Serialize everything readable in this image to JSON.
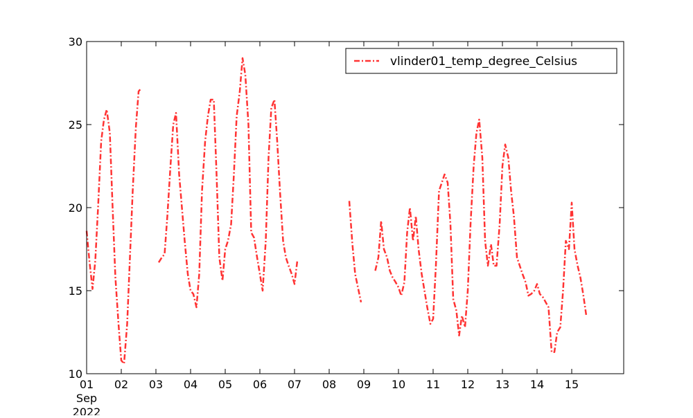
{
  "chart_data": {
    "type": "line",
    "x_unit": "day of September 2022",
    "xlim": [
      1,
      16.5
    ],
    "ylim": [
      10,
      30
    ],
    "y_ticks": [
      10,
      15,
      20,
      25,
      30
    ],
    "x_ticks": [
      {
        "x": 1,
        "label": "01",
        "sub1": "Sep",
        "sub2": "2022"
      },
      {
        "x": 2,
        "label": "02"
      },
      {
        "x": 3,
        "label": "03"
      },
      {
        "x": 4,
        "label": "04"
      },
      {
        "x": 5,
        "label": "05"
      },
      {
        "x": 6,
        "label": "06"
      },
      {
        "x": 7,
        "label": "07"
      },
      {
        "x": 8,
        "label": "08"
      },
      {
        "x": 9,
        "label": "09"
      },
      {
        "x": 10,
        "label": "10"
      },
      {
        "x": 11,
        "label": "11"
      },
      {
        "x": 12,
        "label": "12"
      },
      {
        "x": 13,
        "label": "13"
      },
      {
        "x": 14,
        "label": "14"
      },
      {
        "x": 15,
        "label": "15"
      }
    ],
    "grid": false,
    "legend_position": "top-right",
    "series": [
      {
        "name": "vlinder01_temp_degree_Celsius",
        "color": "#ff3333",
        "line_style": "dash-dot",
        "segments": [
          [
            [
              1.0,
              18.6
            ],
            [
              1.08,
              16.8
            ],
            [
              1.17,
              15.1
            ],
            [
              1.25,
              16.8
            ],
            [
              1.33,
              20.0
            ],
            [
              1.42,
              24.0
            ],
            [
              1.5,
              25.3
            ],
            [
              1.58,
              25.9
            ],
            [
              1.67,
              24.5
            ],
            [
              1.75,
              20.0
            ],
            [
              1.83,
              15.8
            ],
            [
              1.92,
              13.0
            ],
            [
              2.0,
              10.8
            ],
            [
              2.08,
              10.6
            ],
            [
              2.17,
              13.0
            ],
            [
              2.25,
              17.0
            ],
            [
              2.33,
              21.0
            ],
            [
              2.42,
              24.8
            ],
            [
              2.5,
              27.0
            ],
            [
              2.58,
              27.2
            ]
          ],
          [
            [
              3.08,
              16.7
            ],
            [
              3.17,
              17.0
            ],
            [
              3.25,
              17.2
            ],
            [
              3.33,
              19.5
            ],
            [
              3.42,
              22.5
            ],
            [
              3.5,
              25.0
            ],
            [
              3.58,
              25.7
            ],
            [
              3.67,
              22.0
            ],
            [
              3.75,
              20.0
            ],
            [
              3.83,
              18.0
            ],
            [
              3.92,
              16.0
            ],
            [
              4.0,
              15.0
            ],
            [
              4.08,
              14.8
            ],
            [
              4.17,
              14.0
            ],
            [
              4.25,
              16.0
            ],
            [
              4.33,
              21.0
            ],
            [
              4.42,
              24.0
            ],
            [
              4.5,
              25.5
            ],
            [
              4.58,
              26.5
            ],
            [
              4.67,
              26.5
            ],
            [
              4.75,
              22.0
            ],
            [
              4.83,
              17.0
            ],
            [
              4.92,
              15.6
            ],
            [
              5.0,
              17.5
            ],
            [
              5.08,
              18.0
            ],
            [
              5.17,
              19.0
            ],
            [
              5.25,
              22.0
            ],
            [
              5.33,
              25.5
            ],
            [
              5.42,
              27.0
            ],
            [
              5.5,
              29.0
            ],
            [
              5.58,
              28.0
            ],
            [
              5.67,
              25.0
            ],
            [
              5.75,
              18.5
            ],
            [
              5.83,
              18.2
            ],
            [
              5.92,
              17.0
            ],
            [
              6.0,
              16.0
            ],
            [
              6.08,
              15.0
            ],
            [
              6.17,
              18.0
            ],
            [
              6.25,
              23.0
            ],
            [
              6.33,
              26.0
            ],
            [
              6.42,
              26.5
            ],
            [
              6.5,
              24.0
            ],
            [
              6.58,
              21.0
            ],
            [
              6.67,
              18.0
            ],
            [
              6.75,
              17.0
            ],
            [
              6.83,
              16.5
            ],
            [
              6.92,
              16.0
            ],
            [
              7.0,
              15.4
            ],
            [
              7.08,
              16.8
            ]
          ],
          [
            [
              8.58,
              20.4
            ],
            [
              8.67,
              17.8
            ],
            [
              8.75,
              16.0
            ],
            [
              8.83,
              15.2
            ],
            [
              8.92,
              14.3
            ]
          ],
          [
            [
              9.33,
              16.2
            ],
            [
              9.42,
              17.0
            ],
            [
              9.5,
              19.2
            ],
            [
              9.58,
              17.5
            ],
            [
              9.67,
              17.0
            ],
            [
              9.75,
              16.2
            ],
            [
              9.83,
              15.8
            ],
            [
              9.92,
              15.5
            ],
            [
              10.0,
              15.2
            ],
            [
              10.08,
              14.7
            ],
            [
              10.17,
              15.5
            ],
            [
              10.25,
              18.5
            ],
            [
              10.33,
              20.0
            ],
            [
              10.42,
              18.0
            ],
            [
              10.5,
              19.5
            ],
            [
              10.58,
              17.5
            ],
            [
              10.67,
              16.0
            ],
            [
              10.75,
              15.0
            ],
            [
              10.83,
              14.0
            ],
            [
              10.92,
              13.0
            ],
            [
              11.0,
              13.3
            ],
            [
              11.08,
              16.5
            ],
            [
              11.17,
              21.0
            ],
            [
              11.25,
              21.5
            ],
            [
              11.33,
              22.0
            ],
            [
              11.42,
              21.5
            ],
            [
              11.5,
              19.0
            ],
            [
              11.58,
              14.5
            ],
            [
              11.67,
              13.8
            ],
            [
              11.75,
              12.3
            ],
            [
              11.83,
              13.5
            ],
            [
              11.92,
              12.8
            ],
            [
              12.0,
              15.0
            ],
            [
              12.08,
              19.0
            ],
            [
              12.17,
              22.5
            ],
            [
              12.25,
              24.5
            ],
            [
              12.33,
              25.3
            ],
            [
              12.42,
              23.0
            ],
            [
              12.5,
              18.0
            ],
            [
              12.58,
              16.5
            ],
            [
              12.67,
              17.8
            ],
            [
              12.75,
              16.5
            ],
            [
              12.83,
              16.5
            ],
            [
              12.92,
              19.0
            ],
            [
              13.0,
              22.5
            ],
            [
              13.08,
              23.8
            ],
            [
              13.17,
              23.0
            ],
            [
              13.25,
              21.0
            ],
            [
              13.33,
              19.5
            ],
            [
              13.42,
              17.0
            ],
            [
              13.5,
              16.5
            ],
            [
              13.58,
              16.0
            ],
            [
              13.67,
              15.5
            ],
            [
              13.75,
              14.7
            ],
            [
              13.83,
              14.8
            ],
            [
              13.92,
              15.0
            ],
            [
              14.0,
              15.4
            ],
            [
              14.08,
              14.8
            ],
            [
              14.17,
              14.6
            ],
            [
              14.25,
              14.3
            ],
            [
              14.33,
              14.0
            ],
            [
              14.42,
              11.3
            ],
            [
              14.5,
              11.3
            ],
            [
              14.58,
              12.5
            ],
            [
              14.67,
              12.8
            ],
            [
              14.75,
              15.0
            ],
            [
              14.83,
              18.0
            ],
            [
              14.92,
              17.5
            ],
            [
              15.0,
              20.3
            ],
            [
              15.08,
              17.5
            ],
            [
              15.17,
              16.5
            ],
            [
              15.25,
              15.8
            ],
            [
              15.33,
              14.8
            ],
            [
              15.42,
              13.5
            ]
          ]
        ]
      }
    ]
  }
}
